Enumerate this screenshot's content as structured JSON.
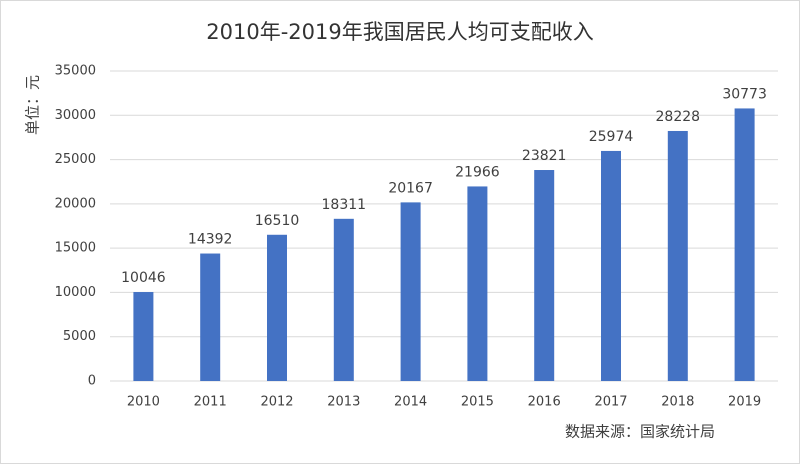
{
  "chart_data": {
    "type": "bar",
    "title": "2010年-2019年我国居民人均可支配收入",
    "y_label": "单位：元",
    "source": "数据来源：国家统计局",
    "categories": [
      "2010",
      "2011",
      "2012",
      "2013",
      "2014",
      "2015",
      "2016",
      "2017",
      "2018",
      "2019"
    ],
    "values": [
      10046,
      14392,
      16510,
      18311,
      20167,
      21966,
      23821,
      25974,
      28228,
      30773
    ],
    "color": "#4472c4",
    "ylim": [
      0,
      35000
    ],
    "yticks": [
      0,
      5000,
      10000,
      15000,
      20000,
      25000,
      30000,
      35000
    ],
    "grid": true
  }
}
